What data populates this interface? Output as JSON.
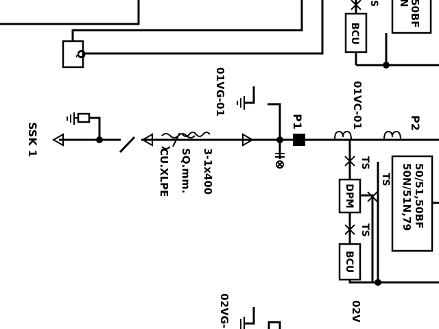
{
  "labels": {
    "ssk": "SSK 1",
    "cable_line1": "3-1x400",
    "cable_line2": "SQ.mm.",
    "cable_line3": "CU.XLPE",
    "vg01": "01VG-01",
    "vc01": "01VC-01",
    "vg02": "02VG-",
    "vc02": "02V",
    "p1": "P1",
    "p2": "P2",
    "ts1": "TS",
    "ts2": "TS",
    "ts3": "TS",
    "ts_top": "S",
    "bcu_top": "BCU",
    "bcu_bottom": "BCU",
    "dpm": "DPM",
    "relay_line1": "50/51,50BF",
    "relay_line2": "50N/51N,79",
    "relay_top_line1": "50BF",
    "relay_top_line2": "N",
    "q_box": "Q"
  }
}
